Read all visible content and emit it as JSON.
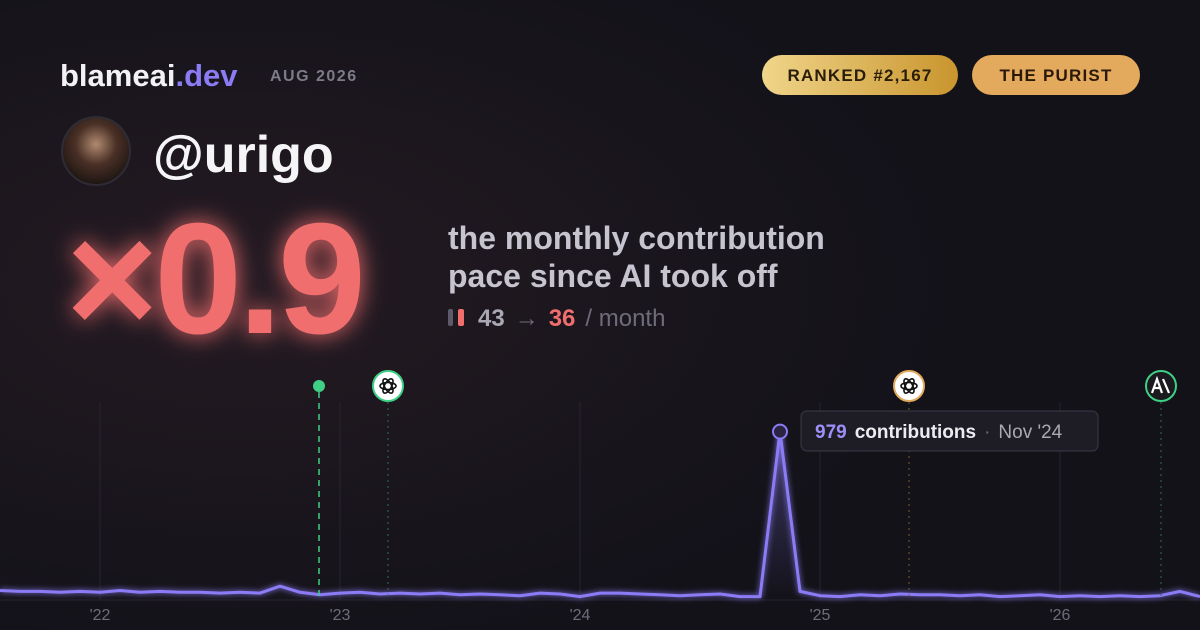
{
  "header": {
    "brand": "blameai",
    "brand_suffix": ".dev",
    "period": "AUG 2026",
    "badges": [
      "RANKED #2,167",
      "THE PURIST"
    ]
  },
  "profile": {
    "username": "@urigo"
  },
  "headline": {
    "multiplier": "×0.9",
    "description": [
      "the monthly contribution",
      "pace since AI took off"
    ],
    "before": 43,
    "arrow": "→",
    "after": 36,
    "unit": "/ month"
  },
  "chart_data": {
    "type": "line",
    "color": "#8b7cf6",
    "categories": [
      null,
      null,
      null,
      null,
      null,
      "'22",
      null,
      null,
      null,
      null,
      null,
      null,
      null,
      null,
      null,
      null,
      null,
      "'23",
      null,
      null,
      null,
      null,
      null,
      null,
      null,
      null,
      null,
      null,
      null,
      "'24",
      null,
      null,
      null,
      null,
      null,
      null,
      null,
      null,
      null,
      null,
      null,
      "'25",
      null,
      null,
      null,
      null,
      null,
      null,
      null,
      null,
      null,
      null,
      null,
      "'26",
      null,
      null,
      null,
      null,
      null,
      null,
      null
    ],
    "values": [
      55,
      50,
      50,
      45,
      50,
      45,
      55,
      45,
      50,
      45,
      45,
      40,
      45,
      40,
      80,
      45,
      30,
      40,
      45,
      35,
      40,
      35,
      40,
      30,
      35,
      30,
      25,
      40,
      35,
      20,
      40,
      40,
      35,
      30,
      25,
      30,
      35,
      20,
      20,
      979,
      50,
      25,
      20,
      30,
      25,
      35,
      30,
      30,
      25,
      30,
      20,
      25,
      30,
      20,
      25,
      20,
      25,
      20,
      25,
      50,
      20
    ],
    "ylim": [
      0,
      1000
    ],
    "tooltip": {
      "unit": "contributions",
      "separator": "·",
      "label": "Nov '24"
    }
  }
}
